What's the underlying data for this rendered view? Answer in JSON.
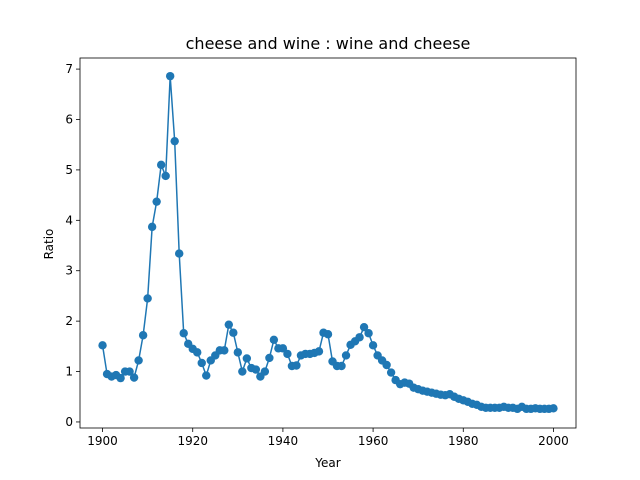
{
  "chart_data": {
    "type": "line",
    "title": "cheese and wine : wine and cheese",
    "xlabel": "Year",
    "ylabel": "Ratio",
    "xlim": [
      1895,
      2005
    ],
    "ylim": [
      -0.12,
      7.22
    ],
    "xticks": [
      1900,
      1920,
      1940,
      1960,
      1980,
      2000
    ],
    "yticks": [
      0,
      1,
      2,
      3,
      4,
      5,
      6,
      7
    ],
    "grid": false,
    "color": "#1f77b4",
    "series": [
      {
        "x": [
          1900,
          1901,
          1902,
          1903,
          1904,
          1905,
          1906,
          1907,
          1908,
          1909,
          1910,
          1911,
          1912,
          1913,
          1914,
          1915,
          1916,
          1917,
          1918,
          1919,
          1920,
          1921,
          1922,
          1923,
          1924,
          1925,
          1926,
          1927,
          1928,
          1929,
          1930,
          1931,
          1932,
          1933,
          1934,
          1935,
          1936,
          1937,
          1938,
          1939,
          1940,
          1941,
          1942,
          1943,
          1944,
          1945,
          1946,
          1947,
          1948,
          1949,
          1950,
          1951,
          1952,
          1953,
          1954,
          1955,
          1956,
          1957,
          1958,
          1959,
          1960,
          1961,
          1962,
          1963,
          1964,
          1965,
          1966,
          1967,
          1968,
          1969,
          1970,
          1971,
          1972,
          1973,
          1974,
          1975,
          1976,
          1977,
          1978,
          1979,
          1980,
          1981,
          1982,
          1983,
          1984,
          1985,
          1986,
          1987,
          1988,
          1989,
          1990,
          1991,
          1992,
          1993,
          1994,
          1995,
          1996,
          1997,
          1998,
          1999,
          2000
        ],
        "y": [
          1.52,
          0.95,
          0.9,
          0.93,
          0.87,
          1.0,
          1.0,
          0.88,
          1.22,
          1.72,
          2.45,
          3.87,
          4.37,
          5.1,
          4.88,
          6.86,
          5.57,
          3.34,
          1.76,
          1.55,
          1.45,
          1.38,
          1.17,
          0.92,
          1.22,
          1.32,
          1.42,
          1.42,
          1.93,
          1.77,
          1.38,
          1.0,
          1.26,
          1.07,
          1.04,
          0.9,
          1.0,
          1.27,
          1.63,
          1.46,
          1.46,
          1.35,
          1.11,
          1.12,
          1.32,
          1.35,
          1.35,
          1.37,
          1.4,
          1.77,
          1.74,
          1.2,
          1.11,
          1.11,
          1.32,
          1.53,
          1.6,
          1.68,
          1.88,
          1.76,
          1.52,
          1.32,
          1.22,
          1.13,
          0.98,
          0.83,
          0.75,
          0.78,
          0.76,
          0.68,
          0.65,
          0.62,
          0.6,
          0.58,
          0.56,
          0.54,
          0.53,
          0.55,
          0.5,
          0.46,
          0.43,
          0.4,
          0.36,
          0.34,
          0.3,
          0.28,
          0.28,
          0.28,
          0.28,
          0.3,
          0.28,
          0.28,
          0.26,
          0.3,
          0.26,
          0.26,
          0.27,
          0.26,
          0.26,
          0.26,
          0.27
        ]
      }
    ]
  }
}
